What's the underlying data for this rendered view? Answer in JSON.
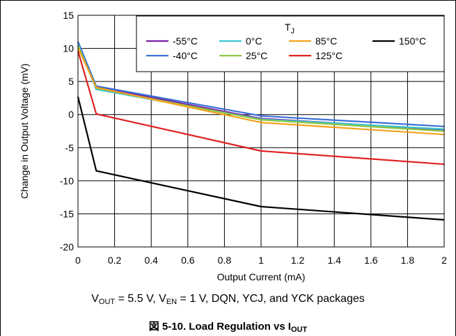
{
  "chart_data": {
    "type": "line",
    "xlabel": "Output Current (mA)",
    "ylabel": "Change in Output Voltage (mV)",
    "xlim": [
      0,
      2
    ],
    "ylim": [
      -20,
      15
    ],
    "xticks": [
      "0",
      "0.2",
      "0.4",
      "0.6",
      "0.8",
      "1",
      "1.2",
      "1.4",
      "1.6",
      "1.8",
      "2"
    ],
    "yticks": [
      "15",
      "10",
      "5",
      "0",
      "-5",
      "-10",
      "-15",
      "-20"
    ],
    "grid": true,
    "legend_title": "TJ",
    "legend_placement": "top-right",
    "series": [
      {
        "name": "-55°C",
        "color": "#7b1fa2",
        "x": [
          0,
          0.1,
          1,
          2
        ],
        "y": [
          11.0,
          4.2,
          -0.6,
          -2.3
        ]
      },
      {
        "name": "-40°C",
        "color": "#3b6fd6",
        "x": [
          0,
          0.1,
          1,
          2
        ],
        "y": [
          11.0,
          4.3,
          -0.2,
          -1.8
        ]
      },
      {
        "name": "0°C",
        "color": "#3fc7cf",
        "x": [
          0,
          0.1,
          1,
          2
        ],
        "y": [
          10.6,
          3.8,
          -0.7,
          -2.2
        ]
      },
      {
        "name": "25°C",
        "color": "#8dc63f",
        "x": [
          0,
          0.1,
          1,
          2
        ],
        "y": [
          10.4,
          4.0,
          -0.8,
          -2.5
        ]
      },
      {
        "name": "85°C",
        "color": "#f5a21b",
        "x": [
          0,
          0.1,
          1,
          2
        ],
        "y": [
          10.1,
          4.1,
          -1.2,
          -3.0
        ]
      },
      {
        "name": "125°C",
        "color": "#e02020",
        "x": [
          0,
          0.1,
          1,
          2
        ],
        "y": [
          9.6,
          0.1,
          -5.5,
          -7.5
        ]
      },
      {
        "name": "150°C",
        "color": "#000000",
        "x": [
          0,
          0.1,
          1,
          2
        ],
        "y": [
          2.7,
          -8.5,
          -13.9,
          -15.9
        ]
      }
    ]
  },
  "conditions": {
    "vout_label": "V",
    "vout_sub": "OUT",
    "vout_value": " = 5.5 V, V",
    "ven_sub": "EN",
    "rest": " = 1 V, DQN, YCJ, and YCK packages"
  },
  "caption": {
    "prefix": "図 5-10. Load Regulation vs I",
    "sub": "OUT"
  }
}
